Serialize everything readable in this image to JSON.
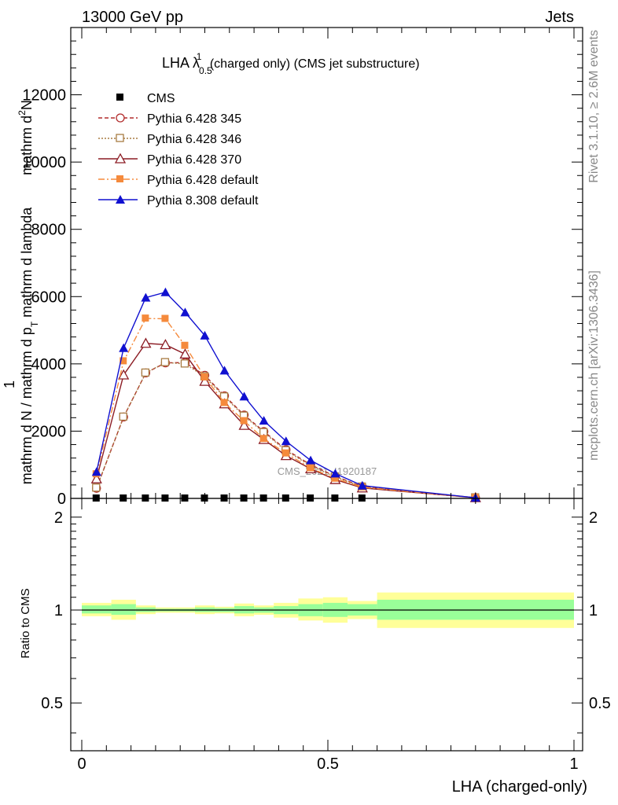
{
  "header": {
    "left": "13000 GeV pp",
    "right": "Jets"
  },
  "side_labels": {
    "rivet": "Rivet 3.1.10, ≥ 2.6M events",
    "mcplots": "mcplots.cern.ch [arXiv:1306.3436]"
  },
  "watermark": "CMS_2021_I1920187",
  "chart_data": [
    {
      "type": "line",
      "panel": "main",
      "title": {
        "prefix": "LHA λ",
        "sup": "1",
        "sub": "0.5",
        "suffix": " (charged only) (CMS jet substructure)"
      },
      "ylabel": {
        "numerator": "mathrm d",
        "numerator_sup": "2",
        "numerator_tail": "N",
        "one": "1",
        "denominator": "mathrm d N / mathrm d p",
        "denominator_sub": "T",
        "denominator_tail": " mathrm d lambda"
      },
      "xlim": [
        0,
        1
      ],
      "ylim": [
        0,
        14000
      ],
      "yticks": [
        0,
        2000,
        4000,
        6000,
        8000,
        10000,
        12000
      ],
      "ytick_labels": [
        "0",
        "2000",
        "4000",
        "6000",
        "8000",
        "10000",
        "12000"
      ],
      "legend_position": "top-left",
      "x": [
        0.03,
        0.085,
        0.13,
        0.17,
        0.21,
        0.25,
        0.29,
        0.33,
        0.37,
        0.415,
        0.465,
        0.515,
        0.57,
        0.8
      ],
      "series": [
        {
          "name": "CMS",
          "color": "#000000",
          "marker": "filled-square",
          "line": "none",
          "values": [
            0,
            0,
            0,
            0,
            0,
            0,
            0,
            0,
            0,
            0,
            0,
            0,
            0,
            null
          ]
        },
        {
          "name": "Pythia 6.428 345",
          "color": "#b22c2c",
          "marker": "open-circle",
          "line": "dashed",
          "values": [
            300,
            2420,
            3730,
            4030,
            4040,
            3660,
            3050,
            2480,
            1990,
            1450,
            1000,
            660,
            350,
            20
          ]
        },
        {
          "name": "Pythia 6.428 346",
          "color": "#a87c43",
          "marker": "open-square",
          "line": "dotted",
          "values": [
            310,
            2420,
            3730,
            4040,
            4000,
            3620,
            3020,
            2450,
            1960,
            1420,
            970,
            640,
            340,
            20
          ]
        },
        {
          "name": "Pythia 6.428 370",
          "color": "#8c1c24",
          "marker": "open-triangle",
          "line": "solid",
          "values": [
            580,
            3670,
            4610,
            4570,
            4290,
            3480,
            2810,
            2170,
            1750,
            1270,
            880,
            560,
            310,
            20
          ]
        },
        {
          "name": "Pythia 6.428 default",
          "color": "#f58a3c",
          "marker": "filled-square",
          "line": "dashdot",
          "values": [
            720,
            4080,
            5350,
            5340,
            4540,
            3600,
            2840,
            2300,
            1770,
            1340,
            900,
            590,
            330,
            20
          ]
        },
        {
          "name": "Pythia 8.308 default",
          "color": "#1010d0",
          "marker": "filled-triangle",
          "line": "solid",
          "values": [
            790,
            4470,
            5970,
            6130,
            5530,
            4840,
            3800,
            3030,
            2310,
            1700,
            1130,
            740,
            380,
            20
          ]
        }
      ]
    },
    {
      "type": "area",
      "panel": "ratio",
      "ylabel": "Ratio to CMS",
      "xlabel": "LHA (charged-only)",
      "xlim": [
        0,
        1
      ],
      "ylim": [
        0.35,
        2.3
      ],
      "yticks": [
        0.5,
        1,
        2
      ],
      "ytick_labels": [
        "0.5",
        "1",
        "2"
      ],
      "xticks": [
        0,
        0.5,
        1
      ],
      "xtick_labels": [
        "0",
        "0.5",
        "1"
      ],
      "log_scale": true,
      "bin_edges": [
        0,
        0.06,
        0.11,
        0.15,
        0.19,
        0.23,
        0.27,
        0.31,
        0.35,
        0.39,
        0.44,
        0.49,
        0.54,
        0.6,
        1.0
      ],
      "stat_band": {
        "name": "stat",
        "color": "#99ff99",
        "upper": [
          1.035,
          1.045,
          1.02,
          1.01,
          1.01,
          1.02,
          1.015,
          1.03,
          1.02,
          1.03,
          1.045,
          1.055,
          1.045,
          1.08
        ],
        "lower": [
          0.975,
          0.965,
          0.985,
          0.99,
          0.99,
          0.985,
          0.985,
          0.975,
          0.98,
          0.97,
          0.955,
          0.95,
          0.96,
          0.93
        ]
      },
      "total_band": {
        "name": "stat+syst",
        "color": "#ffff99",
        "upper": [
          1.055,
          1.08,
          1.035,
          1.02,
          1.02,
          1.035,
          1.025,
          1.05,
          1.035,
          1.055,
          1.09,
          1.1,
          1.07,
          1.14
        ],
        "lower": [
          0.955,
          0.93,
          0.97,
          0.98,
          0.98,
          0.97,
          0.975,
          0.955,
          0.965,
          0.945,
          0.925,
          0.91,
          0.935,
          0.875
        ]
      }
    }
  ]
}
